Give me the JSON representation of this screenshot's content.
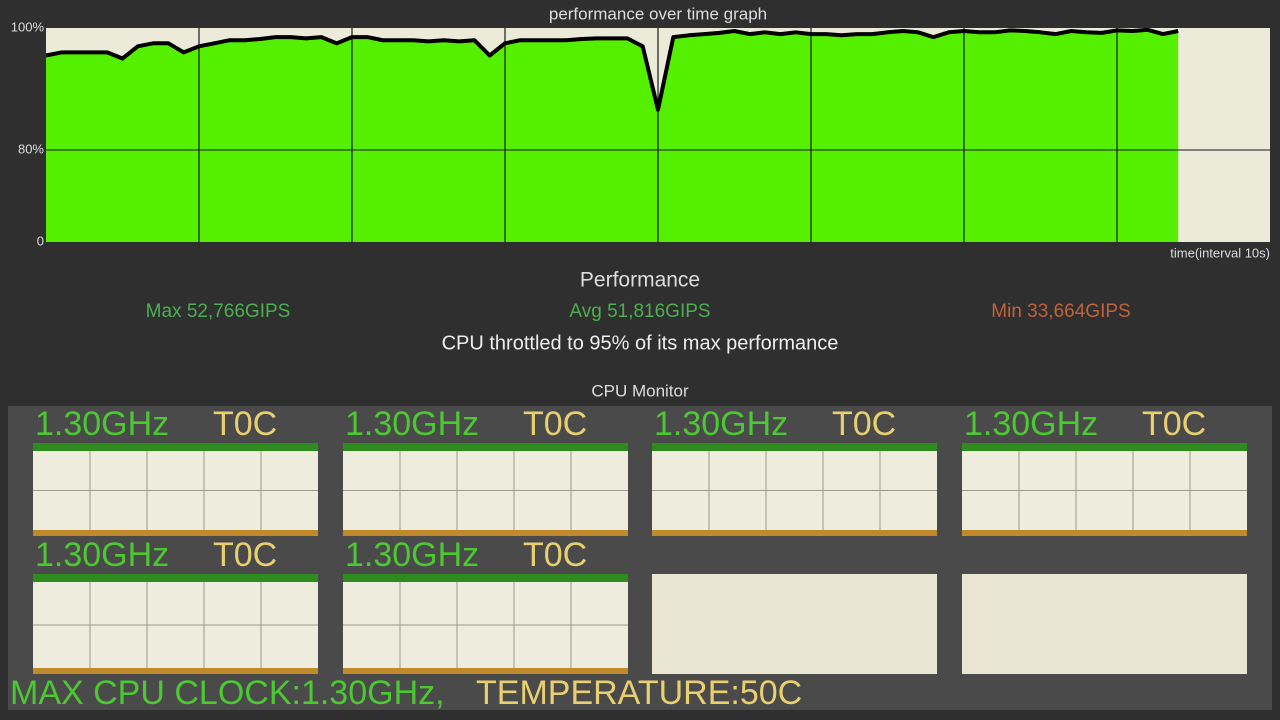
{
  "chart_data": {
    "type": "area",
    "title": "performance over time graph",
    "xlabel": "time(interval 10s)",
    "xlim": [
      0,
      80
    ],
    "xticks": [
      10,
      20,
      30,
      40,
      50,
      60,
      70
    ],
    "ylim": [
      0,
      100
    ],
    "yticks": [
      0,
      {
        "value": 80,
        "label": "80%"
      },
      {
        "value": 100,
        "label": "100%"
      }
    ],
    "grid": true,
    "color": "#000000",
    "fill_color": "#55f000",
    "values": [
      95.5,
      96,
      96,
      96,
      96,
      95,
      97,
      97.5,
      97.5,
      96,
      97,
      97.5,
      98,
      98,
      98.2,
      98.5,
      98.5,
      98.3,
      98.5,
      97.5,
      98.5,
      98.5,
      98,
      98,
      98,
      97.8,
      98,
      97.8,
      98,
      95.5,
      97.5,
      98,
      98,
      98,
      98,
      98.2,
      98.3,
      98.3,
      98.3,
      97,
      86.6,
      98.5,
      98.8,
      99,
      99.2,
      99.5,
      99,
      99.3,
      99,
      99.3,
      99,
      99,
      98.8,
      99,
      99,
      99.3,
      99.5,
      99.3,
      98.5,
      99.3,
      99.5,
      99.3,
      99.3,
      99.6,
      99.5,
      99.3,
      99,
      99.5,
      99.3,
      99.2,
      99.6,
      99.5,
      99.7,
      99,
      99.5
    ]
  },
  "performance": {
    "title": "Performance",
    "max": "Max 52,766GIPS",
    "avg": "Avg 51,816GIPS",
    "min": "Min 33,664GIPS",
    "note": "CPU throttled to 95% of its max performance"
  },
  "cpu_monitor": {
    "title": "CPU Monitor",
    "cores": [
      {
        "freq": "1.30GHz",
        "temp": "T0C"
      },
      {
        "freq": "1.30GHz",
        "temp": "T0C"
      },
      {
        "freq": "1.30GHz",
        "temp": "T0C"
      },
      {
        "freq": "1.30GHz",
        "temp": "T0C"
      },
      {
        "freq": "1.30GHz",
        "temp": "T0C"
      },
      {
        "freq": "1.30GHz",
        "temp": "T0C"
      }
    ]
  },
  "summary": {
    "max_clock": "MAX CPU CLOCK:1.30GHz,",
    "temperature": "TEMPERATURE:50C"
  }
}
